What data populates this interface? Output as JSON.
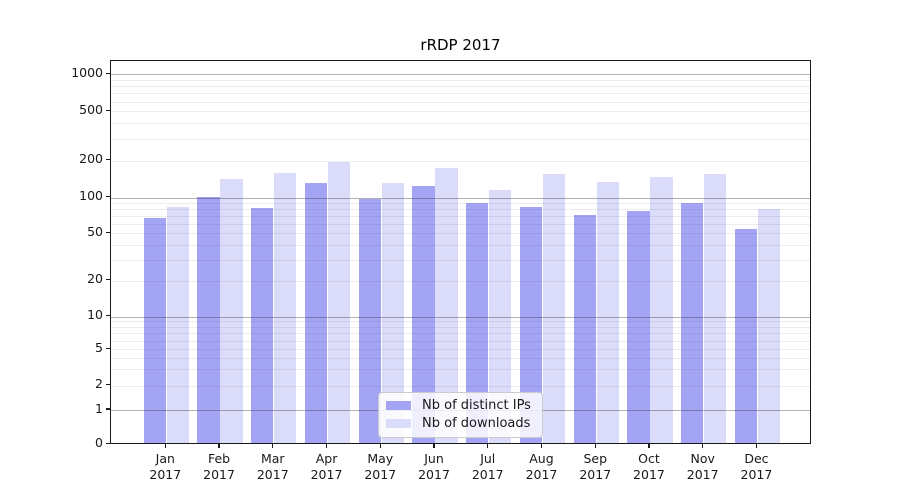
{
  "chart_data": {
    "type": "bar",
    "title": "rRDP 2017",
    "categories": [
      "Jan",
      "Feb",
      "Mar",
      "Apr",
      "May",
      "Jun",
      "Jul",
      "Aug",
      "Sep",
      "Oct",
      "Nov",
      "Dec"
    ],
    "x_year": "2017",
    "series": [
      {
        "name": "Nb of distinct IPs",
        "color": "#a4a4f4",
        "values": [
          67,
          101,
          82,
          131,
          97,
          125,
          91,
          84,
          72,
          78,
          91,
          54
        ]
      },
      {
        "name": "Nb of downloads",
        "color": "#dbdbfa",
        "values": [
          84,
          141,
          160,
          193,
          132,
          174,
          116,
          155,
          135,
          148,
          157,
          80
        ]
      }
    ],
    "y_ticks": [
      0,
      1,
      2,
      5,
      10,
      20,
      50,
      100,
      200,
      500,
      1000
    ],
    "y_scale": "symlog",
    "ylim": [
      0,
      1280
    ],
    "xlabel": "",
    "ylabel": "",
    "grid": true,
    "legend_position": "lower-center"
  }
}
